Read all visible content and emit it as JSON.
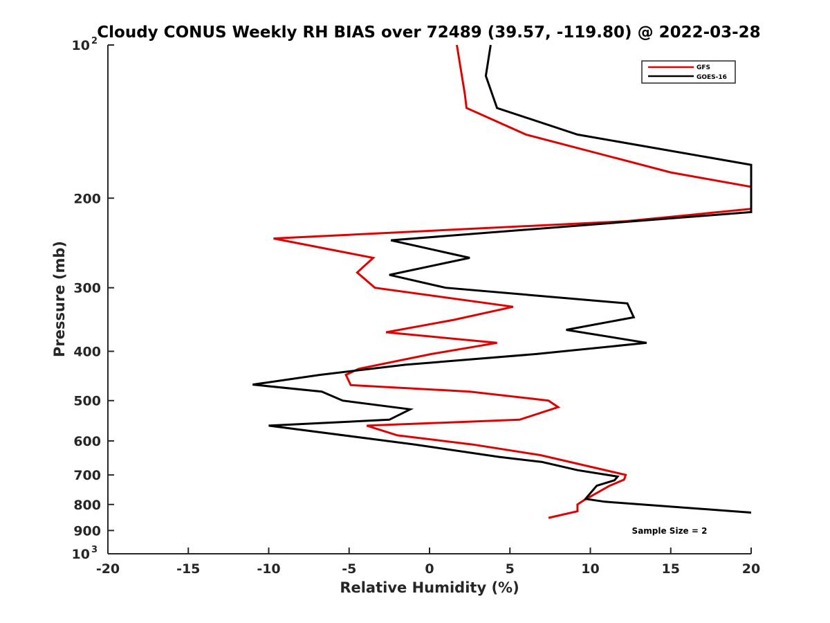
{
  "colors": {
    "gfs": "#e00000",
    "goes": "#000000",
    "axis": "#262626"
  },
  "chart_data": {
    "type": "line",
    "title": "Cloudy CONUS Weekly RH BIAS over 72489 (39.57, -119.80) @ 2022-03-28",
    "xlabel": "Relative Humidity (%)",
    "ylabel": "Pressure (mb)",
    "xlim": [
      -20,
      20
    ],
    "ylim": [
      100,
      1000
    ],
    "y_scale": "log",
    "y_reversed": true,
    "grid": false,
    "legend_position": "top-right",
    "x_ticks": [
      "-20",
      "-15",
      "-10",
      "-5",
      "0",
      "5",
      "10",
      "15",
      "20"
    ],
    "y_ticks": [
      {
        "value": 100,
        "base": "10",
        "exp": "2"
      },
      {
        "value": 200,
        "label": "200"
      },
      {
        "value": 300,
        "label": "300"
      },
      {
        "value": 400,
        "label": "400"
      },
      {
        "value": 500,
        "label": "500"
      },
      {
        "value": 600,
        "label": "600"
      },
      {
        "value": 700,
        "label": "700"
      },
      {
        "value": 800,
        "label": "800"
      },
      {
        "value": 900,
        "label": "900"
      },
      {
        "value": 1000,
        "base": "10",
        "exp": "3"
      }
    ],
    "annotation": "Sample Size = 2",
    "series": [
      {
        "name": "GFS",
        "color": "#e00000",
        "points": [
          {
            "x": 1.7,
            "p": 100
          },
          {
            "x": 2.2,
            "p": 125
          },
          {
            "x": 2.3,
            "p": 133
          },
          {
            "x": 6.0,
            "p": 150
          },
          {
            "x": 15.0,
            "p": 178
          },
          {
            "x": 20.0,
            "p": 190
          },
          {
            "x": 20.0,
            "p": 210
          },
          {
            "x": 12.2,
            "p": 222
          },
          {
            "x": -9.7,
            "p": 240
          },
          {
            "x": -3.5,
            "p": 262
          },
          {
            "x": -4.5,
            "p": 280
          },
          {
            "x": -3.4,
            "p": 300
          },
          {
            "x": 5.2,
            "p": 327
          },
          {
            "x": 1.5,
            "p": 347
          },
          {
            "x": -2.7,
            "p": 367
          },
          {
            "x": 4.2,
            "p": 385
          },
          {
            "x": 0.1,
            "p": 405
          },
          {
            "x": -4.4,
            "p": 433
          },
          {
            "x": -5.2,
            "p": 445
          },
          {
            "x": -4.9,
            "p": 466
          },
          {
            "x": 2.5,
            "p": 480
          },
          {
            "x": 7.4,
            "p": 500
          },
          {
            "x": 8.0,
            "p": 515
          },
          {
            "x": 5.6,
            "p": 545
          },
          {
            "x": -3.9,
            "p": 560
          },
          {
            "x": -2.0,
            "p": 585
          },
          {
            "x": 2.7,
            "p": 610
          },
          {
            "x": 6.9,
            "p": 640
          },
          {
            "x": 12.2,
            "p": 700
          },
          {
            "x": 12.1,
            "p": 715
          },
          {
            "x": 11.2,
            "p": 735
          },
          {
            "x": 9.6,
            "p": 785
          },
          {
            "x": 9.2,
            "p": 800
          },
          {
            "x": 9.2,
            "p": 825
          },
          {
            "x": 7.4,
            "p": 850
          }
        ]
      },
      {
        "name": "GOES-16",
        "color": "#000000",
        "points": [
          {
            "x": 3.8,
            "p": 100
          },
          {
            "x": 3.5,
            "p": 115
          },
          {
            "x": 4.2,
            "p": 133
          },
          {
            "x": 9.2,
            "p": 150
          },
          {
            "x": 20.0,
            "p": 172
          },
          {
            "x": 20.0,
            "p": 213
          },
          {
            "x": -2.4,
            "p": 242
          },
          {
            "x": 2.5,
            "p": 262
          },
          {
            "x": -2.5,
            "p": 283
          },
          {
            "x": 1.0,
            "p": 300
          },
          {
            "x": 12.3,
            "p": 322
          },
          {
            "x": 12.7,
            "p": 343
          },
          {
            "x": 8.5,
            "p": 363
          },
          {
            "x": 13.5,
            "p": 385
          },
          {
            "x": 6.6,
            "p": 405
          },
          {
            "x": -1.5,
            "p": 425
          },
          {
            "x": -6.8,
            "p": 445
          },
          {
            "x": -11.0,
            "p": 465
          },
          {
            "x": -6.7,
            "p": 480
          },
          {
            "x": -5.4,
            "p": 500
          },
          {
            "x": -1.2,
            "p": 520
          },
          {
            "x": -2.5,
            "p": 545
          },
          {
            "x": -10.0,
            "p": 560
          },
          {
            "x": -0.9,
            "p": 610
          },
          {
            "x": 4.3,
            "p": 645
          },
          {
            "x": 7.0,
            "p": 660
          },
          {
            "x": 9.2,
            "p": 685
          },
          {
            "x": 11.7,
            "p": 705
          },
          {
            "x": 11.5,
            "p": 717
          },
          {
            "x": 10.4,
            "p": 735
          },
          {
            "x": 9.7,
            "p": 780
          },
          {
            "x": 10.9,
            "p": 790
          },
          {
            "x": 20.0,
            "p": 830
          }
        ]
      }
    ]
  }
}
